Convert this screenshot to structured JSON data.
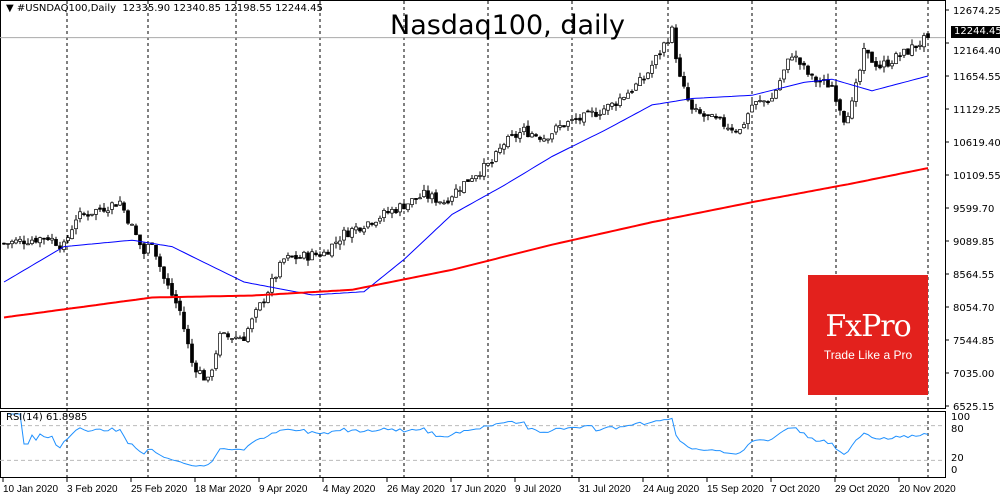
{
  "header": {
    "symbol": "#USNDAQ100,Daily",
    "open": "12335.90",
    "high": "12340.85",
    "low": "12198.55",
    "close": "12244.45"
  },
  "title": "Nasdaq100, daily",
  "logo": {
    "brand": "FxPro",
    "tagline": "Trade Like a Pro",
    "color": "#e3211d"
  },
  "current_price_label": "12244.45",
  "rsi": {
    "label": "RSI(14) 61.8985",
    "levels": [
      "100",
      "80",
      "20",
      "0"
    ],
    "color": "#1e90ff"
  },
  "chart_data": {
    "type": "candlestick",
    "title": "Nasdaq100, daily",
    "ylim": [
      6525.15,
      12674.25
    ],
    "y_ticks": [
      "12674.25",
      "12164.40",
      "11654.55",
      "11129.25",
      "10619.40",
      "10109.55",
      "9599.70",
      "9089.85",
      "8564.55",
      "8054.70",
      "7544.85",
      "7035.00",
      "6525.15"
    ],
    "x_ticks": [
      "10 Jan 2020",
      "3 Feb 2020",
      "25 Feb 2020",
      "18 Mar 2020",
      "9 Apr 2020",
      "4 May 2020",
      "26 May 2020",
      "17 Jun 2020",
      "9 Jul 2020",
      "31 Jul 2020",
      "24 Aug 2020",
      "15 Sep 2020",
      "7 Oct 2020",
      "29 Oct 2020",
      "20 Nov 2020"
    ],
    "bars": 232,
    "close_keypoints": [
      [
        0,
        9050
      ],
      [
        11,
        9150
      ],
      [
        15,
        9000
      ],
      [
        18,
        9450
      ],
      [
        29,
        9700
      ],
      [
        32,
        9300
      ],
      [
        35,
        8900
      ],
      [
        37,
        9100
      ],
      [
        40,
        8500
      ],
      [
        44,
        8000
      ],
      [
        47,
        7200
      ],
      [
        51,
        6900
      ],
      [
        54,
        7600
      ],
      [
        60,
        7600
      ],
      [
        65,
        8200
      ],
      [
        70,
        8800
      ],
      [
        80,
        8900
      ],
      [
        85,
        9200
      ],
      [
        95,
        9500
      ],
      [
        105,
        9800
      ],
      [
        110,
        9700
      ],
      [
        117,
        10100
      ],
      [
        122,
        10300
      ],
      [
        125,
        10600
      ],
      [
        130,
        10800
      ],
      [
        135,
        10700
      ],
      [
        140,
        10900
      ],
      [
        145,
        11000
      ],
      [
        152,
        11200
      ],
      [
        160,
        11600
      ],
      [
        167,
        12350
      ],
      [
        169,
        11600
      ],
      [
        172,
        11100
      ],
      [
        180,
        10900
      ],
      [
        184,
        10800
      ],
      [
        187,
        11200
      ],
      [
        192,
        11300
      ],
      [
        197,
        12000
      ],
      [
        202,
        11600
      ],
      [
        207,
        11500
      ],
      [
        210,
        11000
      ],
      [
        212,
        11200
      ],
      [
        215,
        12000
      ],
      [
        219,
        11800
      ],
      [
        225,
        12000
      ],
      [
        231,
        12244.45
      ]
    ],
    "series": [
      {
        "name": "MA50",
        "color": "#0000ff",
        "keypoints": [
          [
            0,
            8450
          ],
          [
            15,
            9000
          ],
          [
            32,
            9100
          ],
          [
            42,
            9000
          ],
          [
            60,
            8450
          ],
          [
            77,
            8250
          ],
          [
            90,
            8300
          ],
          [
            100,
            8800
          ],
          [
            112,
            9500
          ],
          [
            125,
            9950
          ],
          [
            137,
            10400
          ],
          [
            150,
            10800
          ],
          [
            162,
            11200
          ],
          [
            172,
            11300
          ],
          [
            187,
            11350
          ],
          [
            200,
            11550
          ],
          [
            207,
            11600
          ],
          [
            217,
            11420
          ],
          [
            231,
            11650
          ]
        ]
      },
      {
        "name": "MA200",
        "color": "#ff0000",
        "keypoints": [
          [
            0,
            7900
          ],
          [
            37,
            8210
          ],
          [
            62,
            8240
          ],
          [
            87,
            8330
          ],
          [
            112,
            8640
          ],
          [
            137,
            9030
          ],
          [
            162,
            9380
          ],
          [
            187,
            9690
          ],
          [
            212,
            9980
          ],
          [
            231,
            10220
          ]
        ]
      }
    ]
  }
}
